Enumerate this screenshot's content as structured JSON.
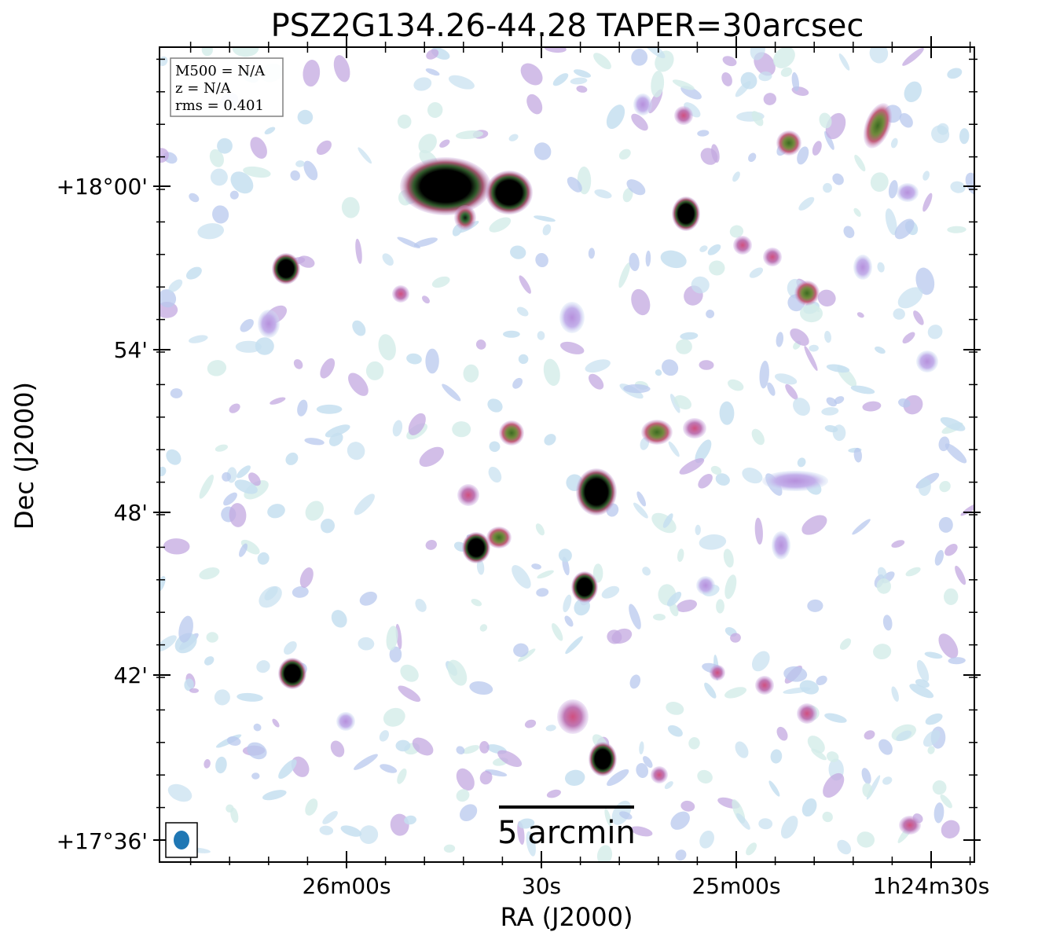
{
  "title": "PSZ2G134.26-44.28 TAPER=30arcsec",
  "info_box": {
    "m500": "M500 = N/A",
    "z": "z = N/A",
    "rms": "rms = 0.401"
  },
  "axes": {
    "xlabel": "RA (J2000)",
    "ylabel": "Dec (J2000)",
    "x_ticks": [
      "26m00s",
      "30s",
      "25m00s",
      "1h24m30s"
    ],
    "y_ticks": [
      "+18°00'",
      "54'",
      "48'",
      "42'",
      "+17°36'"
    ]
  },
  "scale_bar": {
    "label": "5 arcmin"
  },
  "colors": {
    "faint": "#c6dff0",
    "mid": "#c3a8e0",
    "pink": "#d45a8a",
    "green": "#3f6b2f",
    "core": "#000000",
    "beam": "#1f77b4"
  }
}
